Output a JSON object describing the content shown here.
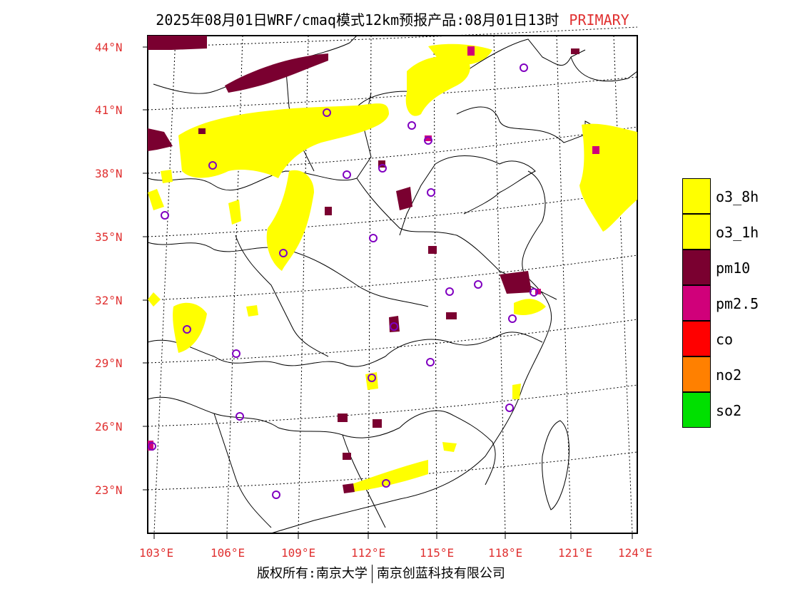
{
  "title": {
    "main": "2025年08月01日WRF/cmaq模式12km预报产品:08月01日13时",
    "primary": "PRIMARY"
  },
  "credit": {
    "left": "版权所有:南京大学",
    "right": "南京创蓝科技有限公司"
  },
  "latitude_labels": [
    "44°N",
    "41°N",
    "38°N",
    "35°N",
    "32°N",
    "29°N",
    "26°N",
    "23°N"
  ],
  "longitude_labels": [
    "103°E",
    "106°E",
    "109°E",
    "112°E",
    "115°E",
    "118°E",
    "121°E",
    "124°E"
  ],
  "legend": [
    {
      "label": "o3_8h",
      "color": "#ffff00"
    },
    {
      "label": "o3_1h",
      "color": "#ffff00"
    },
    {
      "label": "pm10",
      "color": "#7a0030"
    },
    {
      "label": "pm2.5",
      "color": "#d0007a"
    },
    {
      "label": "co",
      "color": "#ff0000"
    },
    {
      "label": "no2",
      "color": "#ff8000"
    },
    {
      "label": "so2",
      "color": "#00e000"
    }
  ]
}
